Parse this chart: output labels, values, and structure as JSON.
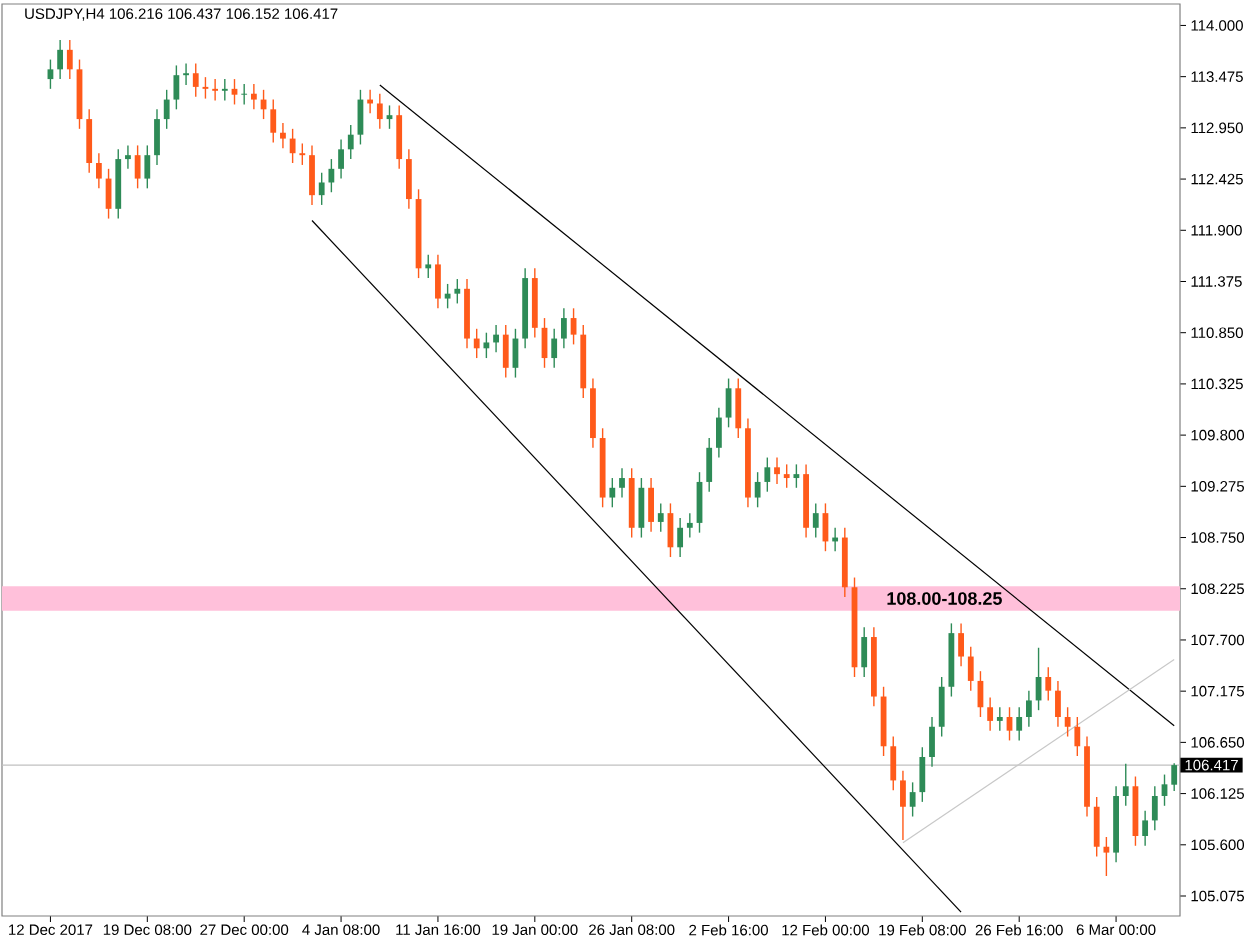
{
  "chart_data": {
    "type": "candlestick",
    "title": "USDJPY,H4  106.216 106.437 106.152 106.417",
    "categories": [
      "12 Dec 2017",
      null,
      null,
      null,
      null,
      null,
      null,
      null,
      null,
      null,
      "19 Dec 08:00",
      null,
      null,
      null,
      null,
      null,
      null,
      null,
      null,
      null,
      "27 Dec 00:00",
      null,
      null,
      null,
      null,
      null,
      null,
      null,
      null,
      null,
      "4 Jan 08:00",
      null,
      null,
      null,
      null,
      null,
      null,
      null,
      null,
      null,
      "11 Jan 16:00",
      null,
      null,
      null,
      null,
      null,
      null,
      null,
      null,
      null,
      "19 Jan 00:00",
      null,
      null,
      null,
      null,
      null,
      null,
      null,
      null,
      null,
      "26 Jan 08:00",
      null,
      null,
      null,
      null,
      null,
      null,
      null,
      null,
      null,
      "2 Feb 16:00",
      null,
      null,
      null,
      null,
      null,
      null,
      null,
      null,
      null,
      "12 Feb 00:00",
      null,
      null,
      null,
      null,
      null,
      null,
      null,
      null,
      null,
      "19 Feb 08:00",
      null,
      null,
      null,
      null,
      null,
      null,
      null,
      null,
      null,
      "26 Feb 16:00",
      null,
      null,
      null,
      null,
      null,
      null,
      null,
      null,
      null,
      "6 Mar 00:00",
      null,
      null,
      null,
      null,
      null,
      null
    ],
    "ohlc": [
      [
        113.45,
        113.65,
        113.35,
        113.55
      ],
      [
        113.55,
        113.85,
        113.45,
        113.75
      ],
      [
        113.75,
        113.85,
        113.45,
        113.55
      ],
      [
        113.55,
        113.65,
        112.94,
        113.04
      ],
      [
        113.04,
        113.14,
        112.49,
        112.59
      ],
      [
        112.59,
        112.69,
        112.33,
        112.43
      ],
      [
        112.43,
        112.53,
        112.02,
        112.12
      ],
      [
        112.12,
        112.73,
        112.02,
        112.63
      ],
      [
        112.63,
        112.77,
        112.53,
        112.67
      ],
      [
        112.67,
        112.77,
        112.33,
        112.43
      ],
      [
        112.43,
        112.77,
        112.33,
        112.67
      ],
      [
        112.67,
        113.14,
        112.57,
        113.04
      ],
      [
        113.04,
        113.34,
        112.94,
        113.24
      ],
      [
        113.24,
        113.59,
        113.14,
        113.49
      ],
      [
        113.49,
        113.61,
        113.39,
        113.51
      ],
      [
        113.51,
        113.61,
        113.27,
        113.37
      ],
      [
        113.37,
        113.47,
        113.25,
        113.35
      ],
      [
        113.35,
        113.45,
        113.23,
        113.33
      ],
      [
        113.33,
        113.45,
        113.23,
        113.35
      ],
      [
        113.35,
        113.45,
        113.19,
        113.29
      ],
      [
        113.29,
        113.4,
        113.19,
        113.3
      ],
      [
        113.3,
        113.4,
        113.14,
        113.24
      ],
      [
        113.24,
        113.34,
        113.04,
        113.14
      ],
      [
        113.14,
        113.24,
        112.8,
        112.9
      ],
      [
        112.9,
        113.0,
        112.74,
        112.84
      ],
      [
        112.84,
        112.94,
        112.59,
        112.69
      ],
      [
        112.69,
        112.79,
        112.57,
        112.67
      ],
      [
        112.67,
        112.77,
        112.16,
        112.26
      ],
      [
        112.26,
        112.49,
        112.16,
        112.39
      ],
      [
        112.39,
        112.63,
        112.29,
        112.53
      ],
      [
        112.53,
        112.83,
        112.43,
        112.73
      ],
      [
        112.73,
        112.98,
        112.63,
        112.88
      ],
      [
        112.88,
        113.34,
        112.78,
        113.24
      ],
      [
        113.24,
        113.34,
        113.1,
        113.2
      ],
      [
        113.2,
        113.3,
        112.94,
        113.04
      ],
      [
        113.04,
        113.18,
        112.94,
        113.08
      ],
      [
        113.08,
        113.18,
        112.53,
        112.63
      ],
      [
        112.63,
        112.73,
        112.12,
        112.22
      ],
      [
        112.22,
        112.32,
        111.41,
        111.51
      ],
      [
        111.51,
        111.65,
        111.41,
        111.55
      ],
      [
        111.55,
        111.65,
        111.1,
        111.2
      ],
      [
        111.2,
        111.35,
        111.1,
        111.25
      ],
      [
        111.25,
        111.4,
        111.15,
        111.3
      ],
      [
        111.3,
        111.4,
        110.69,
        110.79
      ],
      [
        110.79,
        110.89,
        110.59,
        110.69
      ],
      [
        110.69,
        110.85,
        110.59,
        110.75
      ],
      [
        110.75,
        110.93,
        110.65,
        110.83
      ],
      [
        110.83,
        110.93,
        110.39,
        110.49
      ],
      [
        110.49,
        110.89,
        110.39,
        110.79
      ],
      [
        110.79,
        111.51,
        110.69,
        111.41
      ],
      [
        111.41,
        111.51,
        110.8,
        110.9
      ],
      [
        110.9,
        111.0,
        110.49,
        110.59
      ],
      [
        110.59,
        110.89,
        110.49,
        110.79
      ],
      [
        110.79,
        111.1,
        110.69,
        111.0
      ],
      [
        111.0,
        111.1,
        110.73,
        110.83
      ],
      [
        110.83,
        110.93,
        110.18,
        110.28
      ],
      [
        110.28,
        110.38,
        109.67,
        109.77
      ],
      [
        109.77,
        109.87,
        109.06,
        109.16
      ],
      [
        109.16,
        109.36,
        109.06,
        109.26
      ],
      [
        109.26,
        109.46,
        109.16,
        109.36
      ],
      [
        109.36,
        109.46,
        108.75,
        108.85
      ],
      [
        108.85,
        109.36,
        108.75,
        109.26
      ],
      [
        109.26,
        109.36,
        108.81,
        108.91
      ],
      [
        108.91,
        109.1,
        108.81,
        109.0
      ],
      [
        109.0,
        109.1,
        108.55,
        108.65
      ],
      [
        108.65,
        108.95,
        108.55,
        108.85
      ],
      [
        108.85,
        109.0,
        108.75,
        108.9
      ],
      [
        108.9,
        109.42,
        108.8,
        109.32
      ],
      [
        109.32,
        109.77,
        109.22,
        109.67
      ],
      [
        109.67,
        110.08,
        109.57,
        109.98
      ],
      [
        109.98,
        110.38,
        109.88,
        110.28
      ],
      [
        110.28,
        110.38,
        109.77,
        109.87
      ],
      [
        109.87,
        109.97,
        109.06,
        109.16
      ],
      [
        109.16,
        109.42,
        109.06,
        109.32
      ],
      [
        109.32,
        109.57,
        109.22,
        109.47
      ],
      [
        109.47,
        109.57,
        109.3,
        109.4
      ],
      [
        109.4,
        109.5,
        109.26,
        109.36
      ],
      [
        109.36,
        109.5,
        109.26,
        109.4
      ],
      [
        109.4,
        109.5,
        108.75,
        108.85
      ],
      [
        108.85,
        109.1,
        108.75,
        109.0
      ],
      [
        109.0,
        109.1,
        108.61,
        108.71
      ],
      [
        108.71,
        108.85,
        108.61,
        108.75
      ],
      [
        108.75,
        108.85,
        108.14,
        108.24
      ],
      [
        108.24,
        108.34,
        107.32,
        107.42
      ],
      [
        107.42,
        107.83,
        107.32,
        107.73
      ],
      [
        107.73,
        107.83,
        107.02,
        107.12
      ],
      [
        107.12,
        107.22,
        106.51,
        106.61
      ],
      [
        106.61,
        106.71,
        106.16,
        106.26
      ],
      [
        106.26,
        106.36,
        105.65,
        105.99
      ],
      [
        105.99,
        106.24,
        105.89,
        106.14
      ],
      [
        106.14,
        106.6,
        106.04,
        106.5
      ],
      [
        106.5,
        106.91,
        106.4,
        106.81
      ],
      [
        106.81,
        107.32,
        106.71,
        107.22
      ],
      [
        107.22,
        107.87,
        107.12,
        107.77
      ],
      [
        107.77,
        107.87,
        107.43,
        107.53
      ],
      [
        107.53,
        107.63,
        107.18,
        107.28
      ],
      [
        107.28,
        107.38,
        106.91,
        107.01
      ],
      [
        107.01,
        107.11,
        106.77,
        106.87
      ],
      [
        106.87,
        107.01,
        106.77,
        106.91
      ],
      [
        106.91,
        107.01,
        106.67,
        106.77
      ],
      [
        106.77,
        107.01,
        106.67,
        106.91
      ],
      [
        106.91,
        107.18,
        106.81,
        107.08
      ],
      [
        107.08,
        107.62,
        106.98,
        107.32
      ],
      [
        107.32,
        107.42,
        107.08,
        107.18
      ],
      [
        107.18,
        107.28,
        106.81,
        106.91
      ],
      [
        106.91,
        107.01,
        106.71,
        106.81
      ],
      [
        106.81,
        106.91,
        106.51,
        106.61
      ],
      [
        106.61,
        106.71,
        105.89,
        105.99
      ],
      [
        105.99,
        106.09,
        105.48,
        105.58
      ],
      [
        105.58,
        105.68,
        105.28,
        105.52
      ],
      [
        105.52,
        106.2,
        105.42,
        106.1
      ],
      [
        106.1,
        106.43,
        106.0,
        106.2
      ],
      [
        106.2,
        106.3,
        105.59,
        105.69
      ],
      [
        105.69,
        105.95,
        105.59,
        105.85
      ],
      [
        105.85,
        106.2,
        105.75,
        106.1
      ],
      [
        106.1,
        106.32,
        106.0,
        106.22
      ],
      [
        106.216,
        106.437,
        106.152,
        106.417
      ]
    ],
    "colors": [
      "#2e8b57",
      "#2e8b57",
      "#ff5a1a",
      "#ff5a1a",
      "#ff5a1a",
      "#ff5a1a",
      "#ff5a1a",
      "#2e8b57",
      "#2e8b57",
      "#ff5a1a",
      "#2e8b57",
      "#2e8b57",
      "#2e8b57",
      "#2e8b57",
      "#2e8b57",
      "#ff5a1a",
      "#ff5a1a",
      "#ff5a1a",
      "#2e8b57",
      "#ff5a1a",
      "#2e8b57",
      "#ff5a1a",
      "#ff5a1a",
      "#ff5a1a",
      "#ff5a1a",
      "#ff5a1a",
      "#ff5a1a",
      "#ff5a1a",
      "#2e8b57",
      "#2e8b57",
      "#2e8b57",
      "#2e8b57",
      "#2e8b57",
      "#ff5a1a",
      "#ff5a1a",
      "#2e8b57",
      "#ff5a1a",
      "#ff5a1a",
      "#ff5a1a",
      "#2e8b57",
      "#ff5a1a",
      "#2e8b57",
      "#2e8b57",
      "#ff5a1a",
      "#ff5a1a",
      "#2e8b57",
      "#2e8b57",
      "#ff5a1a",
      "#2e8b57",
      "#2e8b57",
      "#ff5a1a",
      "#ff5a1a",
      "#2e8b57",
      "#2e8b57",
      "#ff5a1a",
      "#ff5a1a",
      "#ff5a1a",
      "#ff5a1a",
      "#2e8b57",
      "#2e8b57",
      "#ff5a1a",
      "#2e8b57",
      "#ff5a1a",
      "#2e8b57",
      "#ff5a1a",
      "#2e8b57",
      "#2e8b57",
      "#2e8b57",
      "#2e8b57",
      "#2e8b57",
      "#2e8b57",
      "#ff5a1a",
      "#ff5a1a",
      "#2e8b57",
      "#2e8b57",
      "#ff5a1a",
      "#ff5a1a",
      "#2e8b57",
      "#ff5a1a",
      "#2e8b57",
      "#ff5a1a",
      "#2e8b57",
      "#ff5a1a",
      "#ff5a1a",
      "#2e8b57",
      "#ff5a1a",
      "#ff5a1a",
      "#ff5a1a",
      "#ff5a1a",
      "#2e8b57",
      "#2e8b57",
      "#2e8b57",
      "#2e8b57",
      "#2e8b57",
      "#ff5a1a",
      "#ff5a1a",
      "#ff5a1a",
      "#ff5a1a",
      "#2e8b57",
      "#ff5a1a",
      "#2e8b57",
      "#2e8b57",
      "#2e8b57",
      "#ff5a1a",
      "#ff5a1a",
      "#ff5a1a",
      "#ff5a1a",
      "#ff5a1a",
      "#ff5a1a",
      "#ff5a1a",
      "#2e8b57",
      "#2e8b57",
      "#ff5a1a",
      "#2e8b57",
      "#2e8b57",
      "#2e8b57",
      "#2e8b57"
    ],
    "series": [
      {
        "type": "line",
        "values": [
          null,
          null,
          null,
          null,
          null,
          null,
          null,
          null,
          null,
          null,
          null,
          null,
          null,
          null,
          null,
          null,
          null,
          null,
          null,
          null,
          null,
          null,
          null,
          null,
          null,
          null,
          null,
          null,
          null,
          null,
          null,
          null,
          null,
          null,
          113.39,
          null,
          null,
          null,
          null,
          null,
          null,
          null,
          null,
          null,
          null,
          null,
          null,
          null,
          null,
          null,
          null,
          null,
          null,
          null,
          null,
          null,
          null,
          null,
          null,
          null,
          null,
          null,
          null,
          null,
          null,
          null,
          null,
          null,
          null,
          null,
          null,
          null,
          null,
          null,
          null,
          null,
          null,
          null,
          null,
          null,
          null,
          null,
          null,
          null,
          null,
          null,
          null,
          null,
          null,
          null,
          null,
          null,
          null,
          null,
          null,
          null,
          null,
          null,
          null,
          null,
          null,
          null,
          null,
          null,
          null,
          null,
          null,
          null,
          null,
          null,
          null,
          null,
          null,
          null,
          null,
          null,
          106.82
        ],
        "color": "#000000"
      },
      {
        "type": "line",
        "values": [
          null,
          null,
          null,
          null,
          null,
          null,
          null,
          null,
          null,
          null,
          null,
          null,
          null,
          null,
          null,
          null,
          null,
          null,
          null,
          null,
          null,
          null,
          null,
          null,
          null,
          null,
          null,
          112.0,
          null,
          null,
          null,
          null,
          null,
          null,
          null,
          null,
          null,
          null,
          null,
          null,
          null,
          null,
          null,
          null,
          null,
          null,
          null,
          null,
          null,
          null,
          null,
          null,
          null,
          null,
          null,
          null,
          null,
          null,
          null,
          null,
          null,
          null,
          null,
          null,
          null,
          null,
          null,
          null,
          null,
          null,
          null,
          null,
          null,
          null,
          null,
          null,
          null,
          null,
          null,
          null,
          null,
          null,
          null,
          null,
          null,
          null,
          null,
          null,
          null,
          null,
          null,
          null,
          null,
          null,
          104.91,
          null,
          null,
          null,
          null,
          null,
          null,
          null,
          null,
          null,
          null,
          null,
          null,
          null,
          null,
          null,
          null,
          null,
          null,
          null,
          null,
          null,
          null
        ],
        "color": "#000000"
      },
      {
        "type": "line",
        "values": [
          null,
          null,
          null,
          null,
          null,
          null,
          null,
          null,
          null,
          null,
          null,
          null,
          null,
          null,
          null,
          null,
          null,
          null,
          null,
          null,
          null,
          null,
          null,
          null,
          null,
          null,
          null,
          null,
          null,
          null,
          null,
          null,
          null,
          null,
          null,
          null,
          null,
          null,
          null,
          null,
          null,
          null,
          null,
          null,
          null,
          null,
          null,
          null,
          null,
          null,
          null,
          null,
          null,
          null,
          null,
          null,
          null,
          null,
          null,
          null,
          null,
          null,
          null,
          null,
          null,
          null,
          null,
          null,
          null,
          null,
          null,
          null,
          null,
          null,
          null,
          null,
          null,
          null,
          null,
          null,
          null,
          null,
          null,
          null,
          null,
          null,
          null,
          null,
          105.62,
          null,
          null,
          null,
          null,
          null,
          null,
          null,
          null,
          null,
          null,
          null,
          null,
          null,
          null,
          null,
          null,
          null,
          null,
          null,
          null,
          null,
          null,
          null,
          null,
          null,
          null,
          null,
          107.5
        ],
        "color": "#c8c8c8"
      }
    ],
    "ref_lines": [
      {
        "axis": "y",
        "value": 106.417,
        "label": "106.417",
        "color": "#c0c0c0"
      }
    ],
    "bands": [
      {
        "axis": "y",
        "from": 108.0,
        "to": 108.25,
        "label": "108.00-108.25",
        "color": "#ffc0da"
      }
    ],
    "ylim": [
      104.87,
      114.22
    ],
    "yticks": [
      {
        "value": 105.075,
        "label": "105.075"
      },
      {
        "value": 105.6,
        "label": "105.600"
      },
      {
        "value": 106.125,
        "label": "106.125"
      },
      {
        "value": 106.65,
        "label": "106.650"
      },
      {
        "value": 107.175,
        "label": "107.175"
      },
      {
        "value": 107.7,
        "label": "107.700"
      },
      {
        "value": 108.225,
        "label": "108.225"
      },
      {
        "value": 108.75,
        "label": "108.750"
      },
      {
        "value": 109.275,
        "label": "109.275"
      },
      {
        "value": 109.8,
        "label": "109.800"
      },
      {
        "value": 110.325,
        "label": "110.325"
      },
      {
        "value": 110.85,
        "label": "110.850"
      },
      {
        "value": 111.375,
        "label": "111.375"
      },
      {
        "value": 111.9,
        "label": "111.900"
      },
      {
        "value": 112.425,
        "label": "112.425"
      },
      {
        "value": 112.95,
        "label": "112.950"
      },
      {
        "value": 113.475,
        "label": "113.475"
      },
      {
        "value": 114.0,
        "label": "114.000"
      }
    ]
  }
}
